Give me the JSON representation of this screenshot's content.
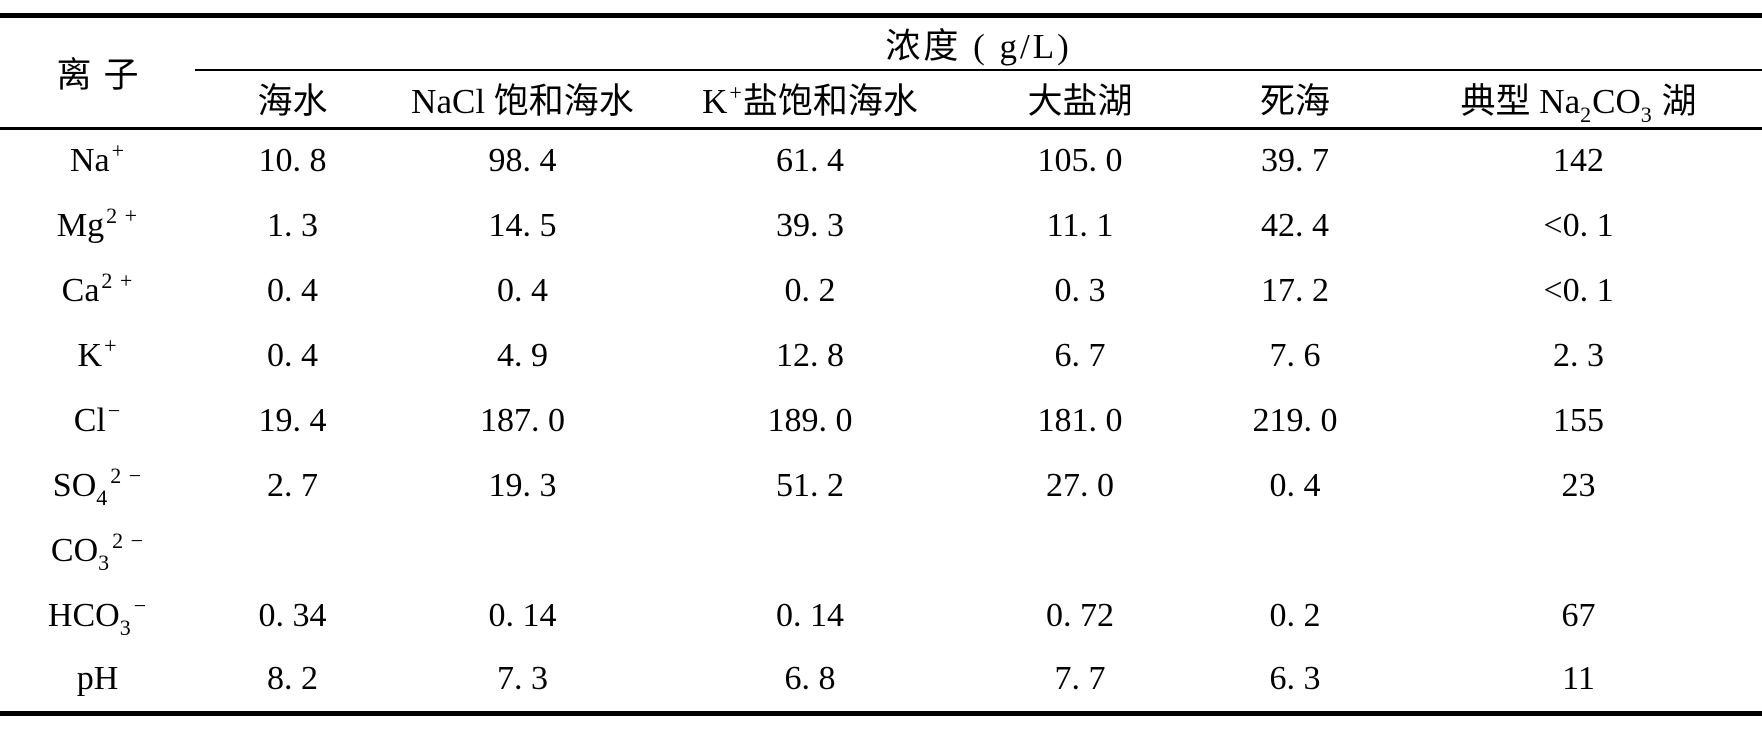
{
  "table": {
    "ion_header": "离子",
    "group_header": "浓度 ( g/L)",
    "columns": [
      {
        "id": "seawater",
        "parts": [
          {
            "t": "海水"
          }
        ]
      },
      {
        "id": "nacl-saturated-seawater",
        "parts": [
          {
            "t": "NaCl 饱和海水"
          }
        ]
      },
      {
        "id": "k-salt-saturated-seawater",
        "parts": [
          {
            "t": "K"
          },
          {
            "t": "+",
            "s": "sup"
          },
          {
            "t": "盐饱和海水"
          }
        ]
      },
      {
        "id": "great-salt-lake",
        "parts": [
          {
            "t": "大盐湖"
          }
        ]
      },
      {
        "id": "dead-sea",
        "parts": [
          {
            "t": "死海"
          }
        ]
      },
      {
        "id": "typical-na2co3-lake",
        "parts": [
          {
            "t": "典型 Na"
          },
          {
            "t": "2",
            "s": "sub"
          },
          {
            "t": "CO"
          },
          {
            "t": "3",
            "s": "sub"
          },
          {
            "t": " 湖"
          }
        ]
      }
    ],
    "rows": [
      {
        "ion_id": "na",
        "ion": [
          {
            "t": "Na"
          },
          {
            "t": "+",
            "s": "sup"
          }
        ],
        "values": [
          "10. 8",
          "98. 4",
          "61. 4",
          "105. 0",
          "39. 7",
          "142"
        ]
      },
      {
        "ion_id": "mg",
        "ion": [
          {
            "t": "Mg"
          },
          {
            "t": "2 +",
            "s": "sup"
          }
        ],
        "values": [
          "1. 3",
          "14. 5",
          "39. 3",
          "11. 1",
          "42. 4",
          "<0. 1"
        ]
      },
      {
        "ion_id": "ca",
        "ion": [
          {
            "t": "Ca"
          },
          {
            "t": "2 +",
            "s": "sup"
          }
        ],
        "values": [
          "0. 4",
          "0. 4",
          "0. 2",
          "0. 3",
          "17. 2",
          "<0. 1"
        ]
      },
      {
        "ion_id": "k",
        "ion": [
          {
            "t": "K"
          },
          {
            "t": "+",
            "s": "sup"
          }
        ],
        "values": [
          "0. 4",
          "4. 9",
          "12. 8",
          "6. 7",
          "7. 6",
          "2. 3"
        ]
      },
      {
        "ion_id": "cl",
        "ion": [
          {
            "t": "Cl"
          },
          {
            "t": "−",
            "s": "sup"
          }
        ],
        "values": [
          "19. 4",
          "187. 0",
          "189. 0",
          "181. 0",
          "219. 0",
          "155"
        ]
      },
      {
        "ion_id": "so4",
        "ion": [
          {
            "t": "SO"
          },
          {
            "t": "4",
            "s": "sub"
          },
          {
            "t": "2 −",
            "s": "sup"
          }
        ],
        "values": [
          "2. 7",
          "19. 3",
          "51. 2",
          "27. 0",
          "0. 4",
          "23"
        ]
      },
      {
        "ion_id": "co3",
        "ion": [
          {
            "t": "CO"
          },
          {
            "t": "3",
            "s": "sub"
          },
          {
            "t": "2 −",
            "s": "sup"
          }
        ],
        "values": [
          "",
          "",
          "",
          "",
          "",
          ""
        ]
      },
      {
        "ion_id": "hco3",
        "ion": [
          {
            "t": "HCO"
          },
          {
            "t": "3",
            "s": "sub"
          },
          {
            "t": "−",
            "s": "sup"
          }
        ],
        "values": [
          "0. 34",
          "0. 14",
          "0. 14",
          "0. 72",
          "0. 2",
          "67"
        ]
      },
      {
        "ion_id": "ph",
        "ion": [
          {
            "t": "pH"
          }
        ],
        "values": [
          "8. 2",
          "7. 3",
          "6. 8",
          "7. 7",
          "6. 3",
          "11"
        ]
      }
    ]
  },
  "colors": {
    "text": "#000000",
    "background": "#ffffff",
    "rule": "#000000"
  }
}
